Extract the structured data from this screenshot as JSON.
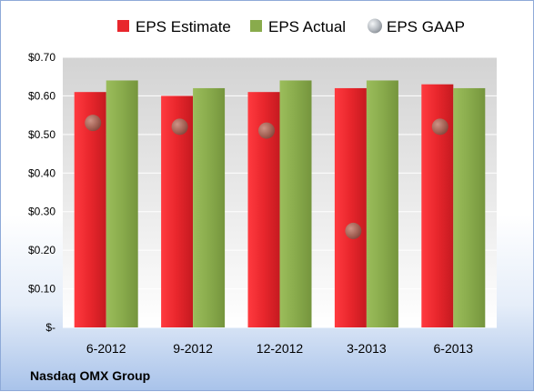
{
  "chart_data": {
    "type": "bar",
    "categories": [
      "6-2012",
      "9-2012",
      "12-2012",
      "3-2013",
      "6-2013"
    ],
    "series": [
      {
        "name": "EPS Estimate",
        "kind": "bar",
        "color": "#e8262c",
        "values": [
          0.61,
          0.6,
          0.61,
          0.62,
          0.63
        ]
      },
      {
        "name": "EPS Actual",
        "kind": "bar",
        "color": "#89ab4c",
        "values": [
          0.64,
          0.62,
          0.64,
          0.64,
          0.62
        ]
      },
      {
        "name": "EPS GAAP",
        "kind": "marker",
        "color": "#b9bec4",
        "values": [
          0.53,
          0.52,
          0.51,
          0.25,
          0.52
        ]
      }
    ],
    "y_ticks": [
      "$-",
      "$0.10",
      "$0.20",
      "$0.30",
      "$0.40",
      "$0.50",
      "$0.60",
      "$0.70"
    ],
    "ylim": [
      0,
      0.7
    ],
    "grid": true,
    "legend_position": "top",
    "source": "Nasdaq OMX Group"
  }
}
